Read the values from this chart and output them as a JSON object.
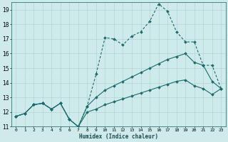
{
  "xlabel": "Humidex (Indice chaleur)",
  "background_color": "#ceeaea",
  "grid_color": "#b8d8d8",
  "line_color": "#1a6b6b",
  "xlim": [
    -0.5,
    23.5
  ],
  "ylim": [
    11,
    19.5
  ],
  "xticks": [
    0,
    1,
    2,
    3,
    4,
    5,
    6,
    7,
    8,
    9,
    10,
    11,
    12,
    13,
    14,
    15,
    16,
    17,
    18,
    19,
    20,
    21,
    22,
    23
  ],
  "yticks": [
    11,
    12,
    13,
    14,
    15,
    16,
    17,
    18,
    19
  ],
  "series1_y": [
    11.7,
    11.9,
    12.5,
    12.6,
    12.2,
    12.6,
    11.5,
    11.0,
    12.4,
    14.6,
    17.1,
    17.0,
    16.6,
    17.2,
    17.5,
    18.2,
    19.4,
    18.9,
    17.5,
    16.8,
    16.8,
    15.2,
    15.2,
    13.6
  ],
  "series2_y": [
    11.7,
    11.9,
    12.5,
    12.6,
    12.2,
    12.6,
    11.5,
    11.0,
    12.4,
    13.0,
    13.5,
    13.8,
    14.1,
    14.4,
    14.7,
    15.0,
    15.3,
    15.6,
    15.8,
    16.0,
    15.4,
    15.2,
    14.1,
    13.6
  ],
  "series3_y": [
    11.7,
    11.9,
    12.5,
    12.6,
    12.2,
    12.6,
    11.5,
    11.0,
    12.0,
    12.2,
    12.5,
    12.7,
    12.9,
    13.1,
    13.3,
    13.5,
    13.7,
    13.9,
    14.1,
    14.2,
    13.8,
    13.6,
    13.2,
    13.6
  ]
}
